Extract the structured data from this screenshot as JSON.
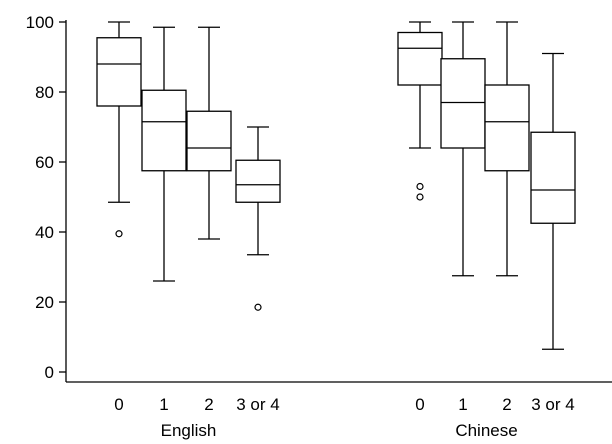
{
  "chart_data": {
    "type": "box",
    "ylim": [
      0,
      100
    ],
    "yticks": [
      0,
      20,
      40,
      60,
      80,
      100
    ],
    "grid": false,
    "groups": [
      {
        "label": "English",
        "boxes": [
          {
            "category": "0",
            "min": 48.5,
            "q1": 76,
            "median": 88,
            "q3": 95.5,
            "max": 100,
            "outliers": [
              39.5
            ]
          },
          {
            "category": "1",
            "min": 26,
            "q1": 57.5,
            "median": 71.5,
            "q3": 80.5,
            "max": 98.5,
            "outliers": []
          },
          {
            "category": "2",
            "min": 38,
            "q1": 57.5,
            "median": 64,
            "q3": 74.5,
            "max": 98.5,
            "outliers": []
          },
          {
            "category": "3 or 4",
            "min": 33.5,
            "q1": 48.5,
            "median": 53.5,
            "q3": 60.5,
            "max": 70,
            "outliers": [
              18.5
            ]
          }
        ]
      },
      {
        "label": "Chinese",
        "boxes": [
          {
            "category": "0",
            "min": 64,
            "q1": 82,
            "median": 92.5,
            "q3": 97,
            "max": 100,
            "outliers": [
              53,
              50
            ]
          },
          {
            "category": "1",
            "min": 27.5,
            "q1": 64,
            "median": 77,
            "q3": 89.5,
            "max": 100,
            "outliers": []
          },
          {
            "category": "2",
            "min": 27.5,
            "q1": 57.5,
            "median": 71.5,
            "q3": 82,
            "max": 100,
            "outliers": []
          },
          {
            "category": "3 or 4",
            "min": 6.5,
            "q1": 42.5,
            "median": 52,
            "q3": 68.5,
            "max": 91,
            "outliers": []
          }
        ]
      }
    ]
  }
}
